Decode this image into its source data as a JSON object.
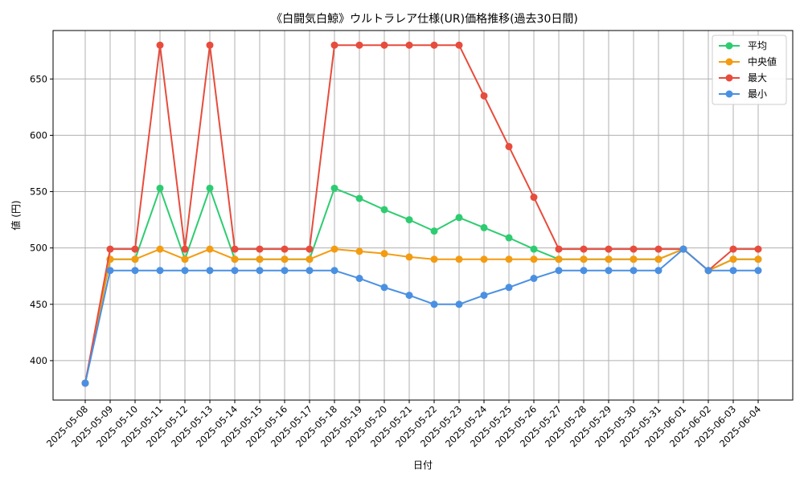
{
  "chart_data": {
    "type": "line",
    "title": "《白闘気白鯨》ウルトラレア仕様(UR)価格推移(過去30日間)",
    "xlabel": "日付",
    "ylabel": "値 (円)",
    "ylim": [
      365,
      693
    ],
    "yticks": [
      400,
      450,
      500,
      550,
      600,
      650
    ],
    "grid": true,
    "legend_position": "top-right",
    "categories": [
      "2025-05-08",
      "2025-05-09",
      "2025-05-10",
      "2025-05-11",
      "2025-05-12",
      "2025-05-13",
      "2025-05-14",
      "2025-05-15",
      "2025-05-16",
      "2025-05-17",
      "2025-05-18",
      "2025-05-19",
      "2025-05-20",
      "2025-05-21",
      "2025-05-22",
      "2025-05-23",
      "2025-05-24",
      "2025-05-25",
      "2025-05-26",
      "2025-05-27",
      "2025-05-28",
      "2025-05-29",
      "2025-05-30",
      "2025-05-31",
      "2025-06-01",
      "2025-06-02",
      "2025-06-03",
      "2025-06-04"
    ],
    "series": [
      {
        "name": "平均",
        "color": "#2ecc71",
        "values": [
          380,
          490,
          490,
          553,
          490,
          553,
          490,
          490,
          490,
          490,
          553,
          544,
          534,
          525,
          515,
          527,
          518,
          509,
          499,
          490,
          490,
          490,
          490,
          490,
          499,
          480,
          490,
          490
        ]
      },
      {
        "name": "中央値",
        "color": "#f39c12",
        "values": [
          380,
          490,
          490,
          499,
          490,
          499,
          490,
          490,
          490,
          490,
          499,
          497,
          495,
          492,
          490,
          490,
          490,
          490,
          490,
          490,
          490,
          490,
          490,
          490,
          499,
          480,
          490,
          490
        ]
      },
      {
        "name": "最大",
        "color": "#e74c3c",
        "values": [
          380,
          499,
          499,
          680,
          499,
          680,
          499,
          499,
          499,
          499,
          680,
          680,
          680,
          680,
          680,
          680,
          635,
          590,
          545,
          499,
          499,
          499,
          499,
          499,
          499,
          480,
          499,
          499
        ]
      },
      {
        "name": "最小",
        "color": "#4a90e2",
        "values": [
          380,
          480,
          480,
          480,
          480,
          480,
          480,
          480,
          480,
          480,
          480,
          473,
          465,
          458,
          450,
          450,
          458,
          465,
          473,
          480,
          480,
          480,
          480,
          480,
          499,
          480,
          480,
          480
        ]
      }
    ]
  }
}
